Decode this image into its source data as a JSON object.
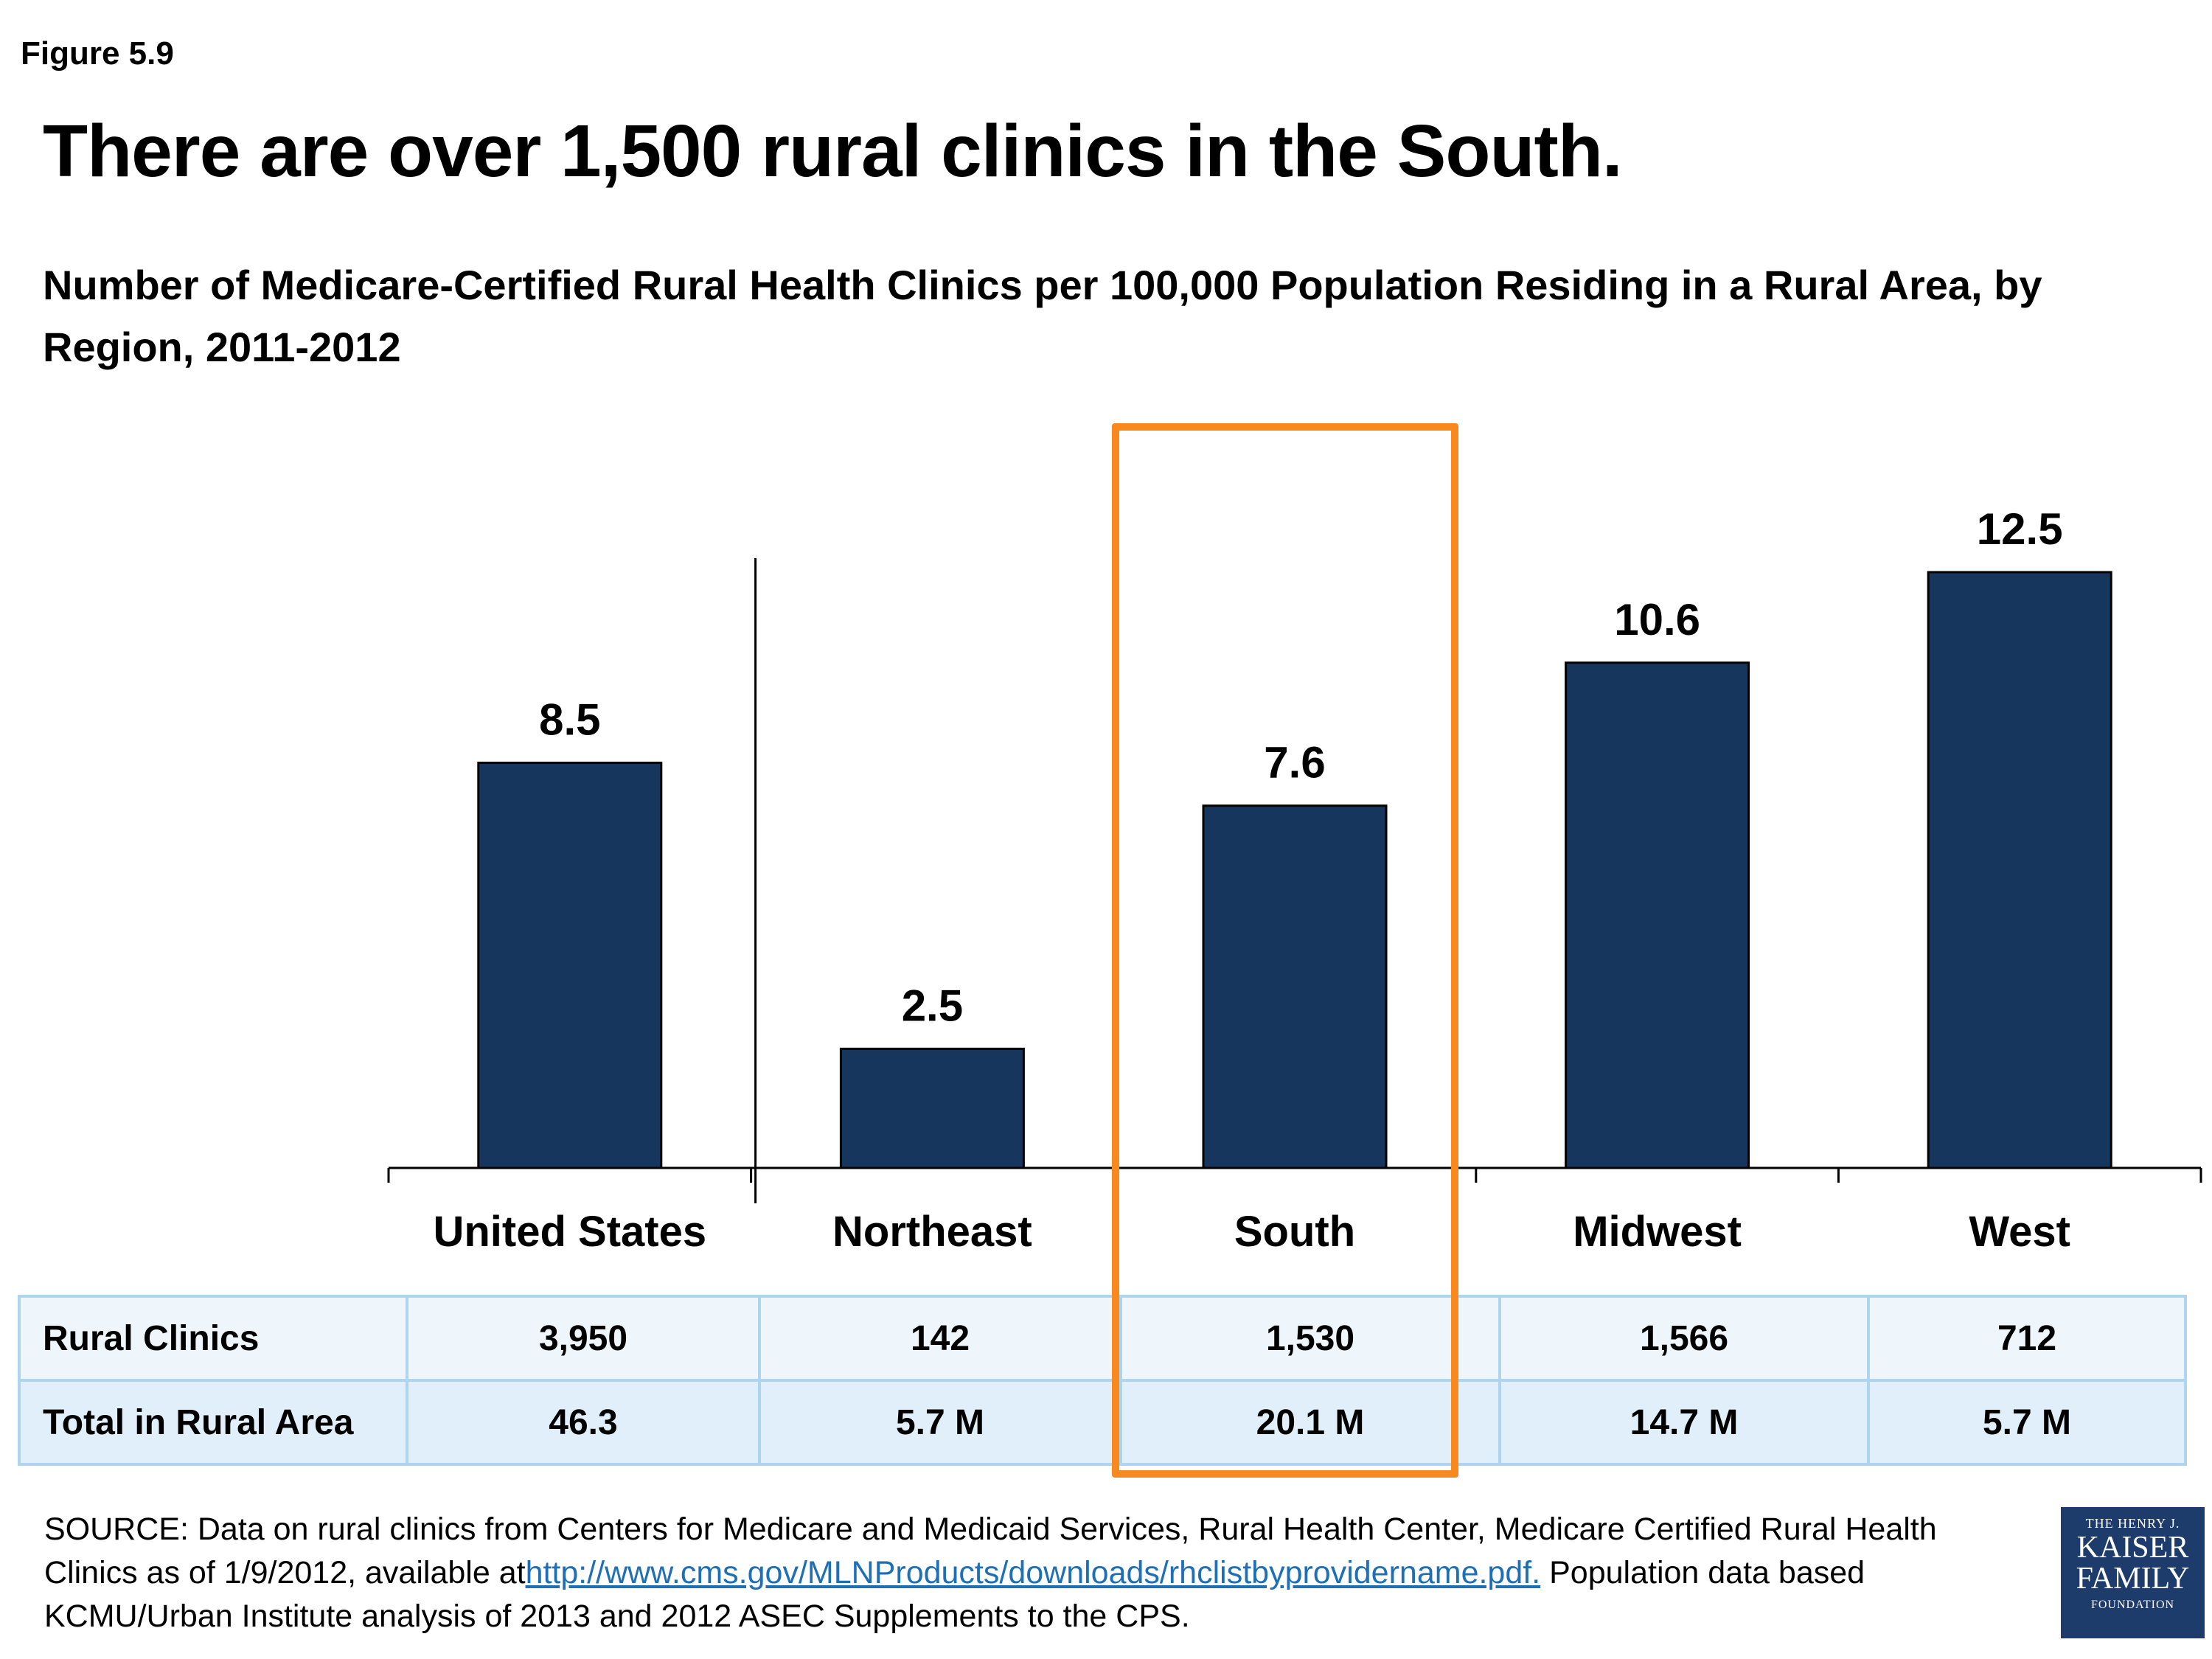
{
  "figure_label": "Figure 5.9",
  "title": "There are over 1,500 rural clinics in the South.",
  "chart_data": {
    "type": "bar",
    "title": "Number of Medicare-Certified Rural Health Clinics per 100,000 Population Residing in a Rural Area, by Region, 2011-2012",
    "categories": [
      "United States",
      "Northeast",
      "South",
      "Midwest",
      "West"
    ],
    "values": [
      8.5,
      2.5,
      7.6,
      10.6,
      12.5
    ],
    "data_labels": [
      "8.5",
      "2.5",
      "7.6",
      "10.6",
      "12.5"
    ],
    "ylim": [
      0,
      12.5
    ],
    "grid": false,
    "bar_color": "#17365d",
    "highlight_category": "South",
    "highlight_color": "#f7891e"
  },
  "table": {
    "rows": [
      {
        "label": "Rural Clinics",
        "values": [
          "3,950",
          "142",
          "1,530",
          "1,566",
          "712"
        ]
      },
      {
        "label": "Total in Rural Area",
        "values": [
          "46.3",
          "5.7 M",
          "20.1 M",
          "14.7 M",
          "5.7 M"
        ]
      }
    ],
    "border_color": "#aed4ee"
  },
  "source": {
    "prefix": "SOURCE: Data on rural clinics from Centers for Medicare and Medicaid Services, Rural Health Center, Medicare Certified Rural Health Clinics as of 1/9/2012, available at",
    "link": "http://www.cms.gov/MLNProducts/downloads/rhclistbyprovidername.pdf.",
    "suffix": " Population data based KCMU/Urban Institute analysis of 2013 and 2012 ASEC Supplements to the CPS."
  },
  "logo": {
    "line1": "THE HENRY J.",
    "line2": "KAISER",
    "line3": "FAMILY",
    "line4": "FOUNDATION",
    "color": "#1d3c6b"
  }
}
